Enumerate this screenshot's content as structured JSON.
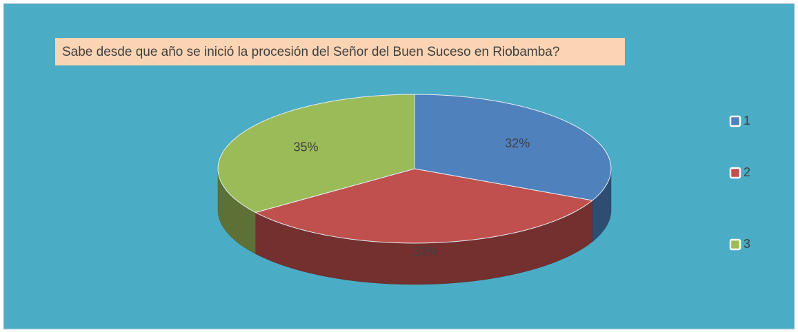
{
  "chart_data": {
    "type": "pie",
    "title": "Sabe desde que año se inició la procesión del Señor del Buen Suceso en Riobamba?",
    "categories": [
      "1",
      "2",
      "3"
    ],
    "values": [
      32,
      33,
      35
    ],
    "value_labels": [
      "32%",
      "33%",
      "35%"
    ],
    "colors": [
      "#4f81bd",
      "#c0504d",
      "#9bbb59"
    ],
    "legend": "right"
  }
}
